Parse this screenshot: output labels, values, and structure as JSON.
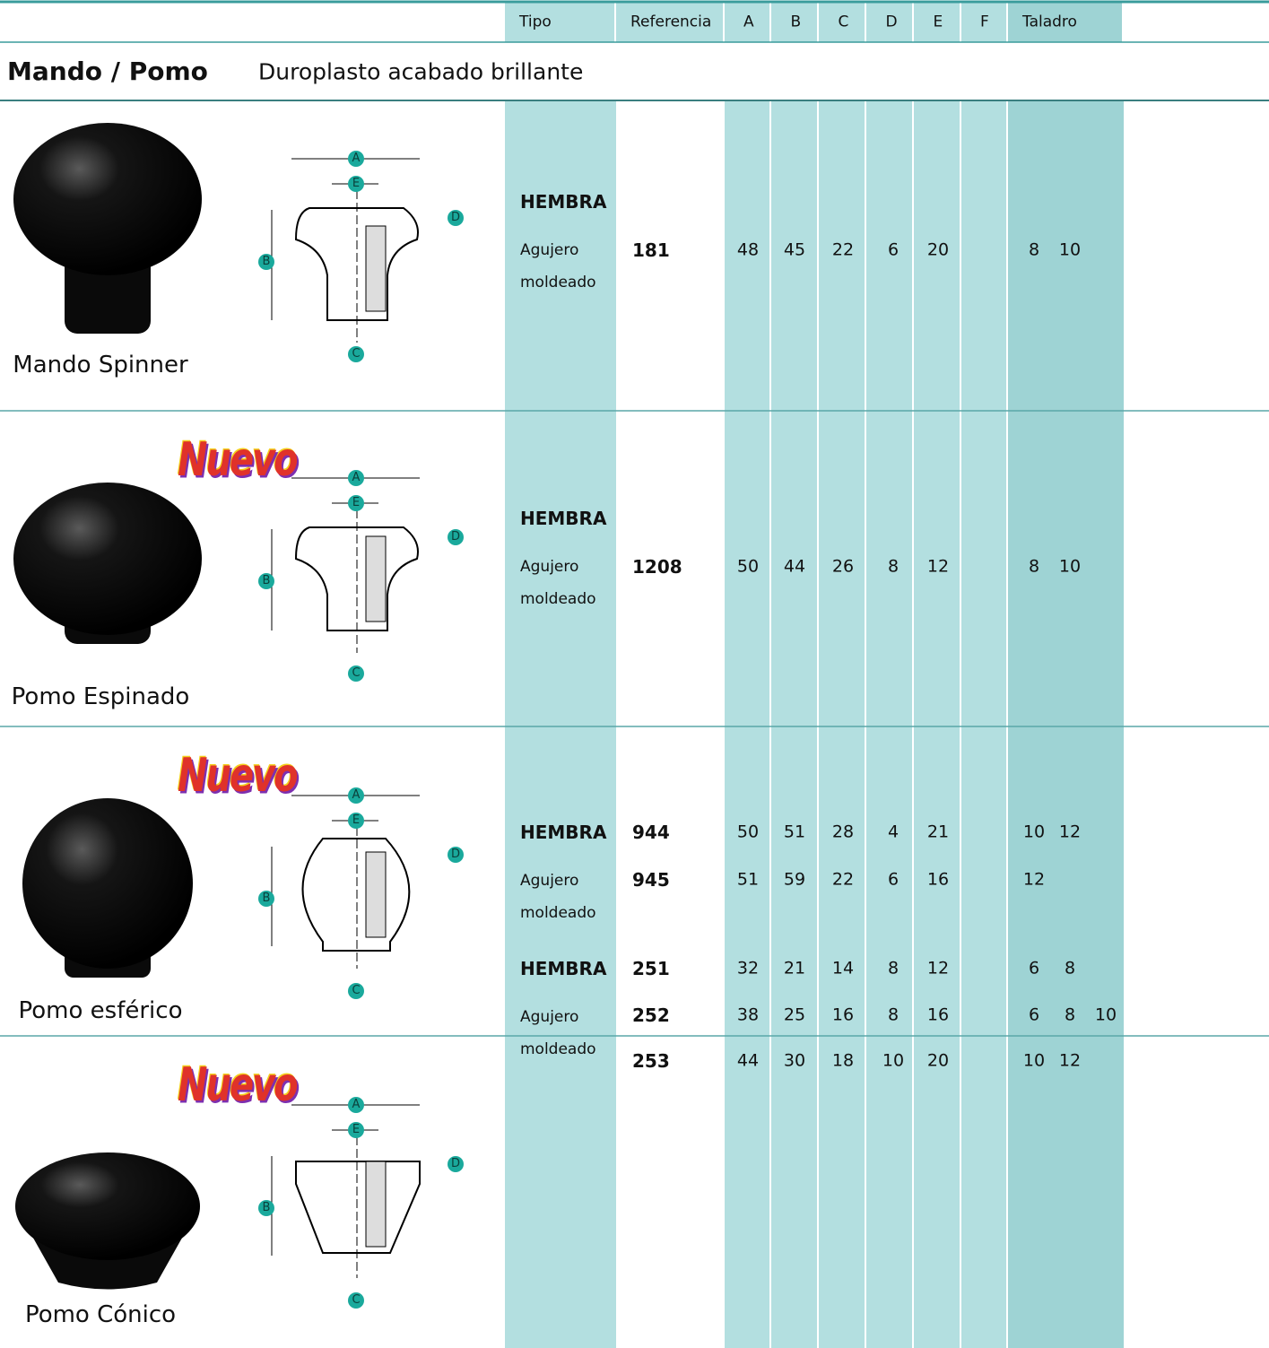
{
  "header": {
    "columns": [
      "Tipo",
      "Referencia",
      "A",
      "B",
      "C",
      "D",
      "E",
      "F",
      "Taladro"
    ]
  },
  "section": {
    "title": "Mando / Pomo",
    "subtitle": "Duroplasto acabado brillante"
  },
  "products": [
    {
      "name": "Mando Spinner",
      "tipo": "HEMBRA",
      "tipo_note": "Agujero moldeado",
      "diagram_labels": [
        "A",
        "E",
        "D",
        "B",
        "C"
      ],
      "refs": [
        {
          "ref": 181,
          "dims": [
            48,
            45,
            22,
            6,
            20
          ],
          "taladro": [
            8,
            10
          ]
        }
      ]
    },
    {
      "name": "Pomo Espinado",
      "badge": "Nuevo",
      "tipo": "HEMBRA",
      "tipo_note": "Agujero moldeado",
      "diagram_labels": [
        "A",
        "E",
        "D",
        "B",
        "C"
      ],
      "refs": [
        {
          "ref": 1208,
          "dims": [
            50,
            44,
            26,
            8,
            12
          ],
          "taladro": [
            8,
            10
          ]
        }
      ]
    },
    {
      "name": "Pomo esférico",
      "badge": "Nuevo",
      "tipo": "HEMBRA",
      "tipo_note": "Agujero moldeado",
      "diagram_labels": [
        "A",
        "E",
        "D",
        "B",
        "C"
      ],
      "refs": [
        {
          "ref": 944,
          "dims": [
            50,
            51,
            28,
            4,
            21
          ],
          "taladro": [
            10,
            12
          ]
        },
        {
          "ref": 945,
          "dims": [
            51,
            59,
            22,
            6,
            16
          ],
          "taladro": [
            12
          ]
        }
      ]
    },
    {
      "name": "Pomo Cónico",
      "badge": "Nuevo",
      "tipo": "HEMBRA",
      "tipo_note": "Agujero moldeado",
      "diagram_labels": [
        "A",
        "E",
        "D",
        "B",
        "C"
      ],
      "refs": [
        {
          "ref": 251,
          "dims": [
            32,
            21,
            14,
            8,
            12
          ],
          "taladro": [
            6,
            8
          ]
        },
        {
          "ref": 252,
          "dims": [
            38,
            25,
            16,
            8,
            16
          ],
          "taladro": [
            6,
            8,
            10
          ]
        },
        {
          "ref": 253,
          "dims": [
            44,
            30,
            18,
            10,
            20
          ],
          "taladro": [
            10,
            12
          ]
        }
      ]
    }
  ]
}
